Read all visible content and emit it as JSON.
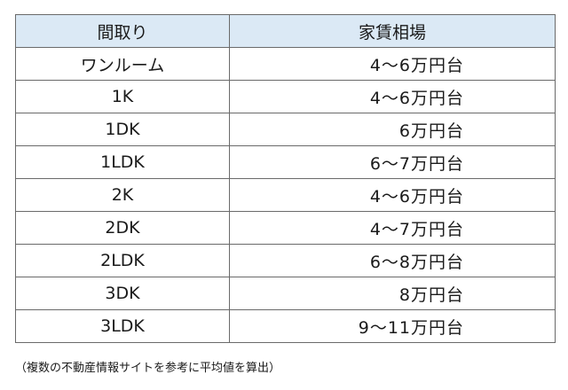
{
  "table": {
    "headers": [
      "間取り",
      "家賃相場"
    ],
    "rows": [
      {
        "layout": "ワンルーム",
        "rent": "4～6万円台"
      },
      {
        "layout": "1K",
        "rent": "4～6万円台"
      },
      {
        "layout": "1DK",
        "rent": "6万円台"
      },
      {
        "layout": "1LDK",
        "rent": "6～7万円台"
      },
      {
        "layout": "2K",
        "rent": "4～6万円台"
      },
      {
        "layout": "2DK",
        "rent": "4～7万円台"
      },
      {
        "layout": "2LDK",
        "rent": "6～8万円台"
      },
      {
        "layout": "3DK",
        "rent": "8万円台"
      },
      {
        "layout": "3LDK",
        "rent": "9～11万円台"
      }
    ]
  },
  "note": "（複数の不動産情報サイトを参考に平均値を算出）",
  "colors": {
    "header_bg": "#dbe9f5",
    "border": "#6a6a6a",
    "text": "#1a1a1a"
  }
}
